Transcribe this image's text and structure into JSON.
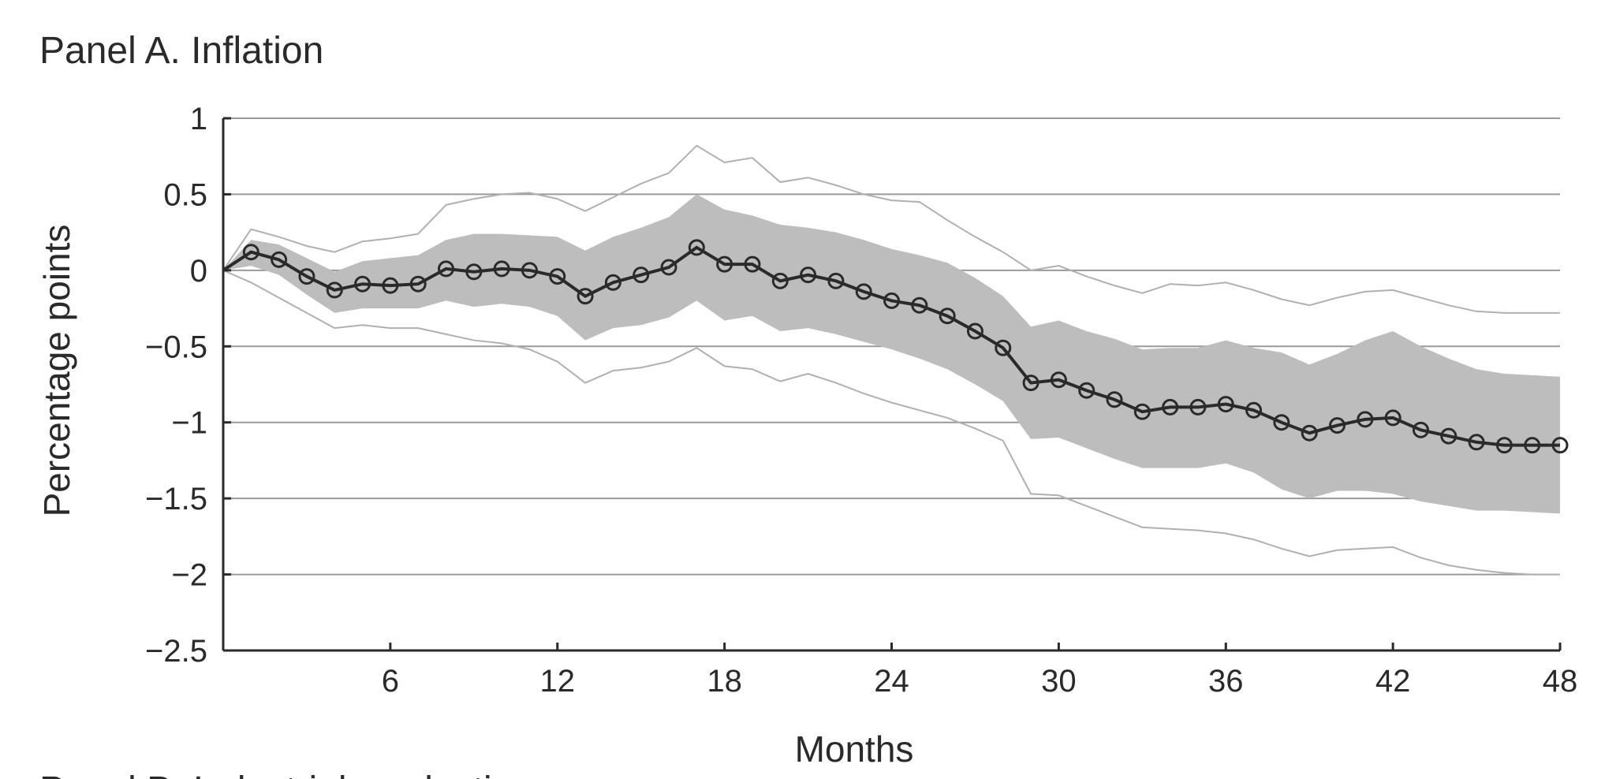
{
  "panel_title": "Panel A. Inflation",
  "next_panel_title_partial": "Panel B. Industrial production",
  "chart_data": {
    "type": "line",
    "title": "Panel A. Inflation",
    "xlabel": "Months",
    "ylabel": "Percentage points",
    "xlim": [
      0,
      48
    ],
    "ylim": [
      -2.5,
      1
    ],
    "x_ticks": [
      6,
      12,
      18,
      24,
      30,
      36,
      42,
      48
    ],
    "y_ticks": [
      1,
      0.5,
      0,
      -0.5,
      -1,
      -1.5,
      -2,
      -2.5
    ],
    "y_tick_labels": [
      "1",
      "0.5",
      "0",
      "−0.5",
      "−1",
      "−1.5",
      "−2",
      "−2.5"
    ],
    "grid": "horizontal",
    "x": [
      0,
      1,
      2,
      3,
      4,
      5,
      6,
      7,
      8,
      9,
      10,
      11,
      12,
      13,
      14,
      15,
      16,
      17,
      18,
      19,
      20,
      21,
      22,
      23,
      24,
      25,
      26,
      27,
      28,
      29,
      30,
      31,
      32,
      33,
      34,
      35,
      36,
      37,
      38,
      39,
      40,
      41,
      42,
      43,
      44,
      45,
      46,
      47,
      48
    ],
    "series": [
      {
        "role": "point_estimate",
        "marker": "open-circle",
        "color": "#2a2a2a",
        "values": [
          0.0,
          0.12,
          0.07,
          -0.04,
          -0.13,
          -0.09,
          -0.1,
          -0.09,
          0.01,
          -0.01,
          0.01,
          0.0,
          -0.04,
          -0.17,
          -0.08,
          -0.03,
          0.02,
          0.15,
          0.04,
          0.04,
          -0.07,
          -0.03,
          -0.07,
          -0.14,
          -0.2,
          -0.23,
          -0.3,
          -0.4,
          -0.51,
          -0.74,
          -0.72,
          -0.79,
          -0.85,
          -0.93,
          -0.9,
          -0.9,
          -0.88,
          -0.92,
          -1.0,
          -1.07,
          -1.02,
          -0.98,
          -0.97,
          -1.05,
          -1.09,
          -1.13,
          -1.15,
          -1.15,
          -1.15
        ]
      },
      {
        "role": "inner_band_upper",
        "color": "#bdbdbd",
        "values": [
          0.0,
          0.2,
          0.17,
          0.08,
          -0.01,
          0.06,
          0.08,
          0.1,
          0.2,
          0.24,
          0.24,
          0.23,
          0.22,
          0.13,
          0.22,
          0.28,
          0.35,
          0.5,
          0.4,
          0.36,
          0.3,
          0.28,
          0.25,
          0.2,
          0.14,
          0.1,
          0.05,
          -0.05,
          -0.17,
          -0.37,
          -0.33,
          -0.4,
          -0.45,
          -0.52,
          -0.51,
          -0.51,
          -0.46,
          -0.51,
          -0.54,
          -0.62,
          -0.55,
          -0.46,
          -0.4,
          -0.5,
          -0.58,
          -0.65,
          -0.68,
          -0.69,
          -0.7
        ]
      },
      {
        "role": "inner_band_lower",
        "color": "#bdbdbd",
        "values": [
          0.0,
          0.03,
          -0.03,
          -0.16,
          -0.28,
          -0.25,
          -0.25,
          -0.25,
          -0.2,
          -0.24,
          -0.22,
          -0.24,
          -0.3,
          -0.46,
          -0.38,
          -0.36,
          -0.31,
          -0.2,
          -0.33,
          -0.3,
          -0.4,
          -0.38,
          -0.42,
          -0.47,
          -0.52,
          -0.58,
          -0.65,
          -0.75,
          -0.86,
          -1.11,
          -1.1,
          -1.17,
          -1.24,
          -1.3,
          -1.3,
          -1.3,
          -1.27,
          -1.33,
          -1.44,
          -1.5,
          -1.45,
          -1.45,
          -1.47,
          -1.52,
          -1.55,
          -1.58,
          -1.58,
          -1.59,
          -1.6
        ]
      },
      {
        "role": "outer_band_upper",
        "color": "#b0b0b0",
        "values": [
          0.0,
          0.27,
          0.22,
          0.16,
          0.12,
          0.19,
          0.21,
          0.24,
          0.43,
          0.47,
          0.5,
          0.51,
          0.47,
          0.39,
          0.48,
          0.57,
          0.64,
          0.82,
          0.71,
          0.74,
          0.58,
          0.61,
          0.56,
          0.5,
          0.46,
          0.45,
          0.33,
          0.22,
          0.12,
          0.0,
          0.03,
          -0.04,
          -0.1,
          -0.15,
          -0.09,
          -0.1,
          -0.08,
          -0.13,
          -0.19,
          -0.23,
          -0.18,
          -0.14,
          -0.13,
          -0.18,
          -0.23,
          -0.27,
          -0.28,
          -0.28,
          -0.28
        ]
      },
      {
        "role": "outer_band_lower",
        "color": "#b0b0b0",
        "values": [
          0.0,
          -0.08,
          -0.18,
          -0.28,
          -0.38,
          -0.36,
          -0.38,
          -0.38,
          -0.42,
          -0.46,
          -0.48,
          -0.52,
          -0.6,
          -0.74,
          -0.66,
          -0.64,
          -0.6,
          -0.51,
          -0.63,
          -0.65,
          -0.73,
          -0.68,
          -0.74,
          -0.81,
          -0.87,
          -0.92,
          -0.97,
          -1.04,
          -1.12,
          -1.47,
          -1.48,
          -1.55,
          -1.62,
          -1.69,
          -1.7,
          -1.71,
          -1.73,
          -1.77,
          -1.83,
          -1.88,
          -1.84,
          -1.83,
          -1.82,
          -1.89,
          -1.94,
          -1.97,
          -1.99,
          -2.0,
          -2.0
        ]
      }
    ]
  }
}
